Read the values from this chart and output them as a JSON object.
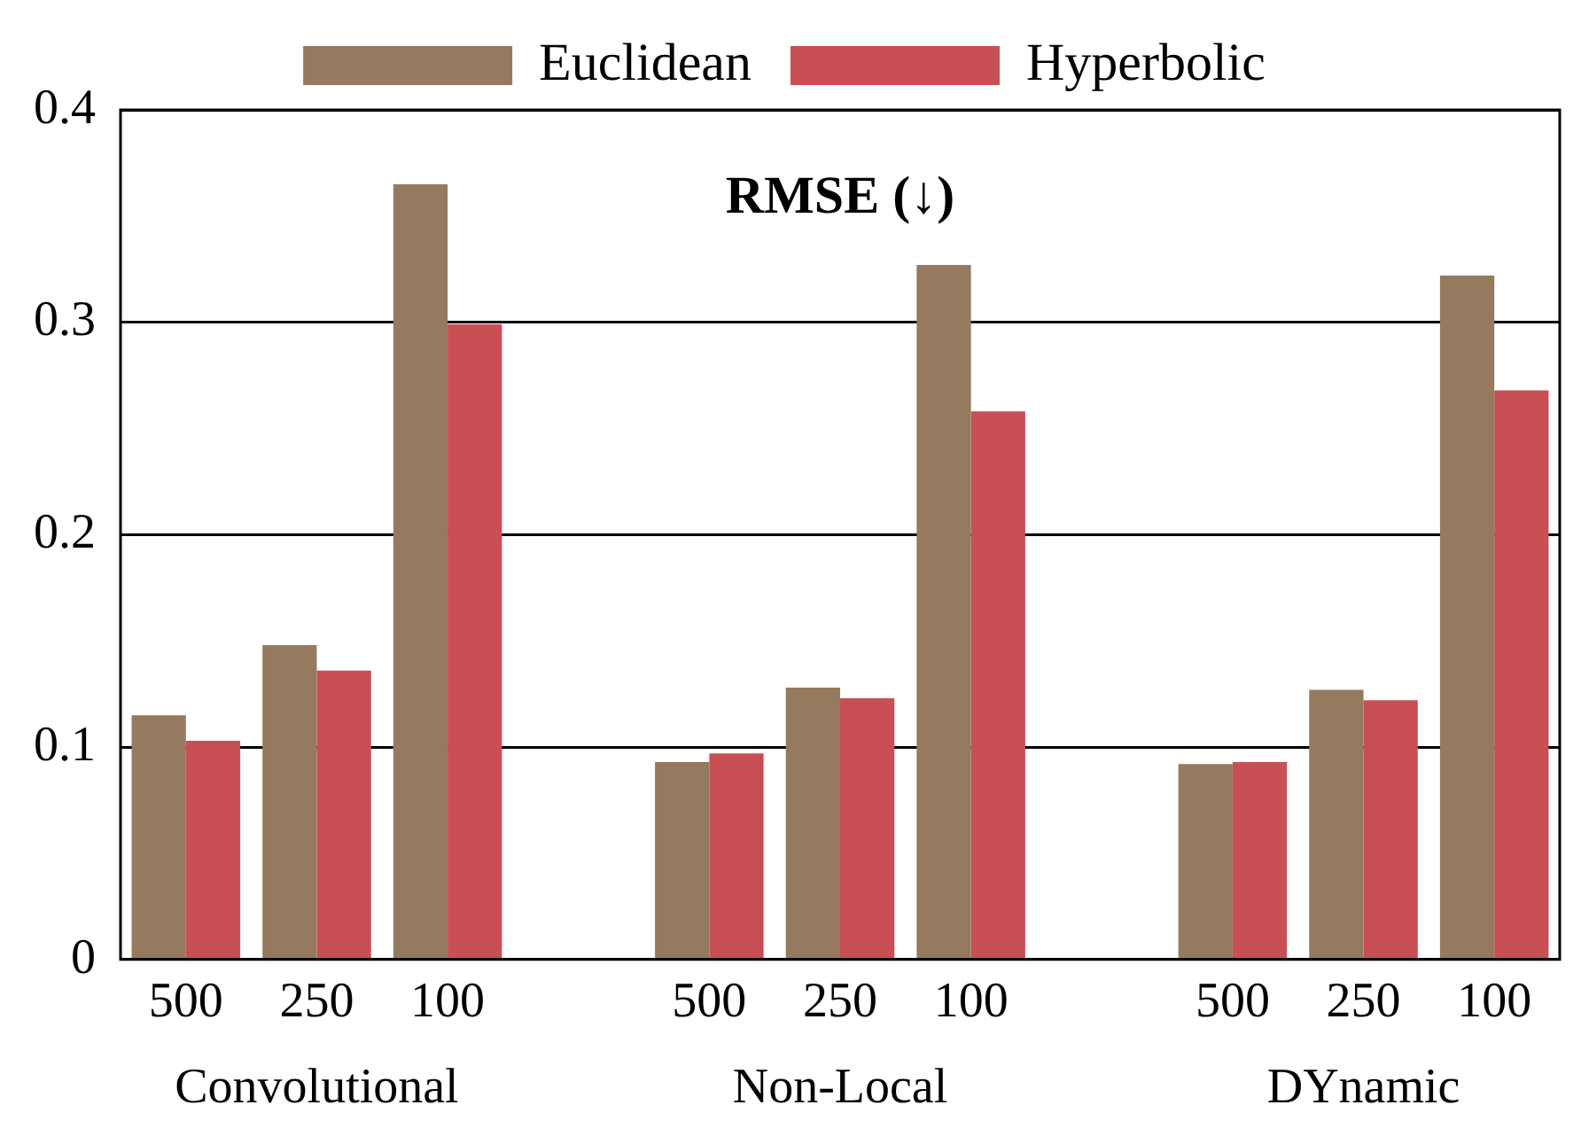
{
  "chart_data": {
    "type": "bar",
    "title": "RMSE (↓)",
    "categories": [
      "500",
      "250",
      "100",
      null,
      "500",
      "250",
      "100",
      null,
      "500",
      "250",
      "100"
    ],
    "series": [
      {
        "name": "Euclidean",
        "color": "#957a5e",
        "values": [
          0.115,
          0.148,
          0.365,
          null,
          0.093,
          0.128,
          0.327,
          null,
          0.092,
          0.127,
          0.322
        ]
      },
      {
        "name": "Hyperbolic",
        "color": "#c85055",
        "values": [
          0.103,
          0.136,
          0.299,
          null,
          0.097,
          0.123,
          0.258,
          null,
          0.093,
          0.122,
          0.268
        ]
      }
    ],
    "ylim": [
      0,
      0.4
    ],
    "yticks": [
      0,
      0.1,
      0.2,
      0.3,
      0.4
    ],
    "grid": "y",
    "legend": "top",
    "annotations": [
      "Convolutional",
      "Non-Local",
      "DYnamic"
    ]
  }
}
